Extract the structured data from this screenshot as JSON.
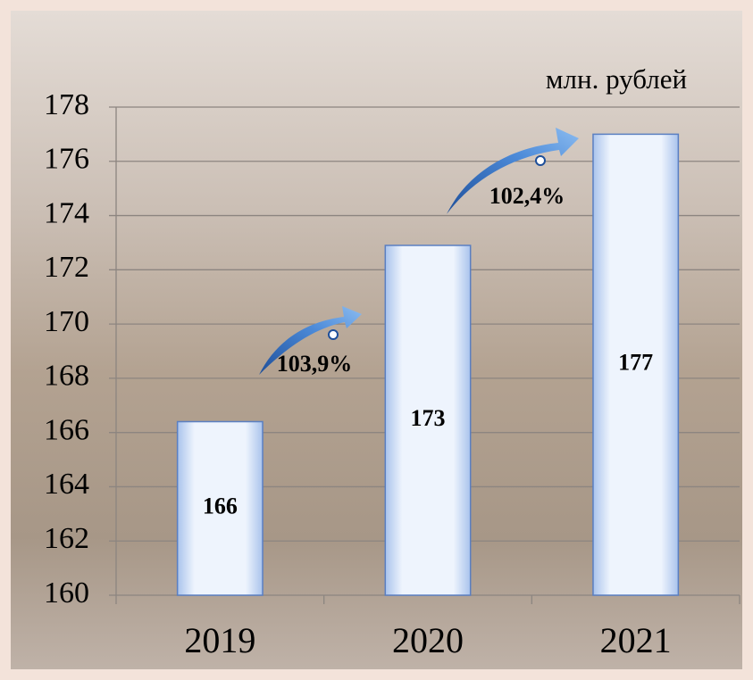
{
  "chart_data": {
    "type": "bar",
    "categories": [
      "2019",
      "2020",
      "2021"
    ],
    "values": [
      166.4,
      172.9,
      177
    ],
    "value_labels": [
      "166",
      "173",
      "177"
    ],
    "color": "#c9dcf6",
    "ylim": [
      160,
      178
    ],
    "yticks": [
      160,
      162,
      164,
      166,
      168,
      170,
      172,
      174,
      176,
      178
    ],
    "grid": true,
    "unit_label": "млн. рублей",
    "annotations": [
      "103,9%",
      "102,4%"
    ]
  }
}
